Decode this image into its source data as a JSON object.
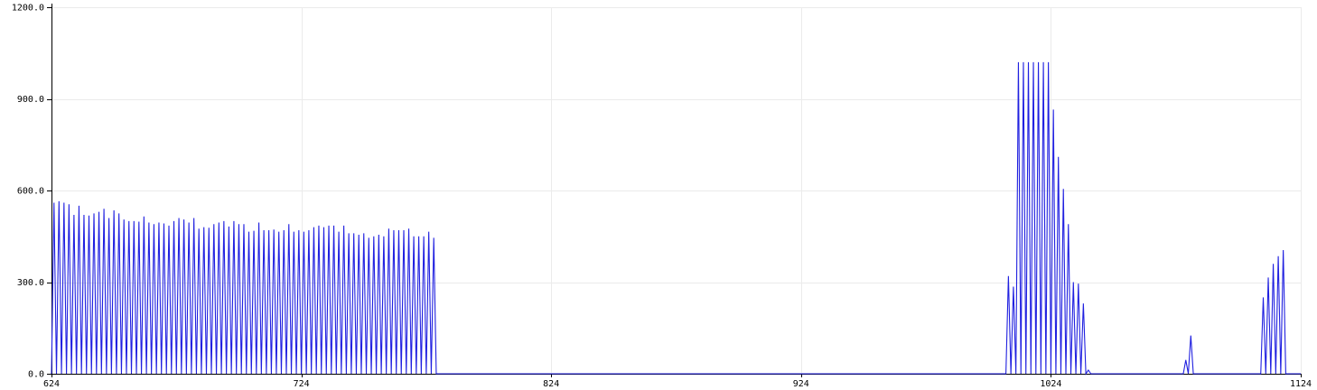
{
  "chart_data": {
    "type": "line",
    "title": "",
    "xlabel": "",
    "ylabel": "",
    "xlim": [
      624,
      1124
    ],
    "ylim": [
      0,
      1200
    ],
    "grid": true,
    "line_color": "#2020e0",
    "x_ticks": [
      624,
      724,
      824,
      924,
      1024,
      1124
    ],
    "x_tick_labels": [
      "624",
      "724",
      "824",
      "924",
      "1024",
      "1124"
    ],
    "y_ticks": [
      0,
      300,
      600,
      900,
      1200
    ],
    "y_tick_labels": [
      "0.0",
      "300.0",
      "600.0",
      "900.0",
      "1200.0"
    ],
    "series": [
      {
        "peaks": [
          [
            625,
            560
          ],
          [
            627,
            565
          ],
          [
            629,
            560
          ],
          [
            631,
            555
          ],
          [
            633,
            520
          ],
          [
            635,
            550
          ],
          [
            637,
            520
          ],
          [
            639,
            518
          ],
          [
            641,
            525
          ],
          [
            643,
            530
          ],
          [
            645,
            540
          ],
          [
            647,
            510
          ],
          [
            649,
            535
          ],
          [
            651,
            525
          ],
          [
            653,
            505
          ],
          [
            655,
            500
          ],
          [
            657,
            500
          ],
          [
            659,
            498
          ],
          [
            661,
            515
          ],
          [
            663,
            495
          ],
          [
            665,
            490
          ],
          [
            667,
            495
          ],
          [
            669,
            492
          ],
          [
            671,
            485
          ],
          [
            673,
            500
          ],
          [
            675,
            510
          ],
          [
            677,
            505
          ],
          [
            679,
            495
          ],
          [
            681,
            510
          ],
          [
            683,
            475
          ],
          [
            685,
            480
          ],
          [
            687,
            478
          ],
          [
            689,
            490
          ],
          [
            691,
            495
          ],
          [
            693,
            500
          ],
          [
            695,
            482
          ],
          [
            697,
            500
          ],
          [
            699,
            490
          ],
          [
            701,
            490
          ],
          [
            703,
            465
          ],
          [
            705,
            468
          ],
          [
            707,
            495
          ],
          [
            709,
            470
          ],
          [
            711,
            470
          ],
          [
            713,
            472
          ],
          [
            715,
            465
          ],
          [
            717,
            470
          ],
          [
            719,
            490
          ],
          [
            721,
            465
          ],
          [
            723,
            470
          ],
          [
            725,
            465
          ],
          [
            727,
            470
          ],
          [
            729,
            480
          ],
          [
            731,
            485
          ],
          [
            733,
            480
          ],
          [
            735,
            485
          ],
          [
            737,
            485
          ],
          [
            739,
            465
          ],
          [
            741,
            485
          ],
          [
            743,
            460
          ],
          [
            745,
            460
          ],
          [
            747,
            455
          ],
          [
            749,
            460
          ],
          [
            751,
            445
          ],
          [
            753,
            450
          ],
          [
            755,
            455
          ],
          [
            757,
            450
          ],
          [
            759,
            475
          ],
          [
            761,
            470
          ],
          [
            763,
            470
          ],
          [
            765,
            470
          ],
          [
            767,
            475
          ],
          [
            769,
            450
          ],
          [
            771,
            450
          ],
          [
            773,
            450
          ],
          [
            775,
            465
          ],
          [
            777,
            445
          ],
          [
            1007,
            320
          ],
          [
            1009,
            285
          ],
          [
            1011,
            1020
          ],
          [
            1013,
            1020
          ],
          [
            1015,
            1020
          ],
          [
            1017,
            1020
          ],
          [
            1019,
            1020
          ],
          [
            1021,
            1020
          ],
          [
            1023,
            1020
          ],
          [
            1025,
            865
          ],
          [
            1027,
            710
          ],
          [
            1029,
            605
          ],
          [
            1031,
            490
          ],
          [
            1033,
            300
          ],
          [
            1035,
            295
          ],
          [
            1037,
            230
          ],
          [
            1039,
            12
          ],
          [
            1078,
            45
          ],
          [
            1080,
            125
          ],
          [
            1109,
            250
          ],
          [
            1111,
            315
          ],
          [
            1113,
            360
          ],
          [
            1115,
            385
          ],
          [
            1117,
            405
          ]
        ]
      }
    ]
  }
}
